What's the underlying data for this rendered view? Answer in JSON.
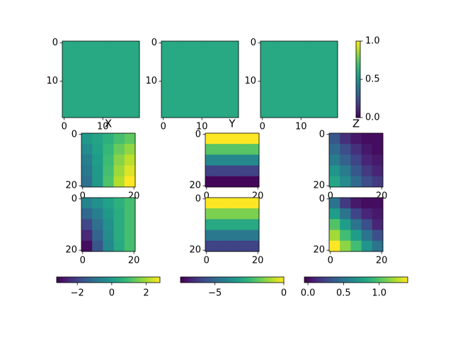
{
  "chart_data": [
    {
      "type": "heatmap",
      "colormap": "viridis",
      "clim": [
        0,
        1
      ],
      "xlim": [
        -0.5,
        19.5
      ],
      "ylim": [
        19.5,
        -0.5
      ],
      "xticks": [
        0,
        10
      ],
      "yticks": [
        0,
        10
      ],
      "z": [
        [
          0.6,
          0.6,
          0.6,
          0.6,
          0.6
        ],
        [
          0.6,
          0.6,
          0.6,
          0.6,
          0.6
        ],
        [
          0.6,
          0.6,
          0.6,
          0.6,
          0.6
        ],
        [
          0.6,
          0.6,
          0.6,
          0.6,
          0.6
        ],
        [
          0.6,
          0.6,
          0.6,
          0.6,
          0.6
        ]
      ]
    },
    {
      "type": "heatmap",
      "colormap": "viridis",
      "clim": [
        0,
        1
      ],
      "xlim": [
        -0.5,
        19.5
      ],
      "ylim": [
        19.5,
        -0.5
      ],
      "xticks": [
        0,
        10
      ],
      "yticks": [
        0,
        10
      ],
      "z": [
        [
          0.6,
          0.6,
          0.6,
          0.6,
          0.6
        ],
        [
          0.6,
          0.6,
          0.6,
          0.6,
          0.6
        ],
        [
          0.6,
          0.6,
          0.6,
          0.6,
          0.6
        ],
        [
          0.6,
          0.6,
          0.6,
          0.6,
          0.6
        ],
        [
          0.6,
          0.6,
          0.6,
          0.6,
          0.6
        ]
      ]
    },
    {
      "type": "heatmap",
      "colormap": "viridis",
      "clim": [
        0,
        1
      ],
      "xlim": [
        -0.5,
        19.5
      ],
      "ylim": [
        19.5,
        -0.5
      ],
      "xticks": [
        0,
        10
      ],
      "yticks": [
        0,
        10
      ],
      "z": [
        [
          0.6,
          0.6,
          0.6,
          0.6,
          0.6
        ],
        [
          0.6,
          0.6,
          0.6,
          0.6,
          0.6
        ],
        [
          0.6,
          0.6,
          0.6,
          0.6,
          0.6
        ],
        [
          0.6,
          0.6,
          0.6,
          0.6,
          0.6
        ],
        [
          0.6,
          0.6,
          0.6,
          0.6,
          0.6
        ]
      ]
    },
    {
      "type": "colorbar",
      "colormap": "viridis",
      "orientation": "vertical",
      "lim": [
        0,
        1
      ],
      "ticks": [
        {
          "value": 0,
          "label": "0.0"
        },
        0.5,
        {
          "value": 1,
          "label": "1.0"
        }
      ]
    },
    {
      "type": "heatmap",
      "title": "X",
      "colormap": "viridis",
      "clim": [
        -3.2,
        2.8
      ],
      "xlim": [
        -0.5,
        20.5
      ],
      "ylim": [
        20.5,
        -0.5
      ],
      "xticks": [
        0,
        20
      ],
      "yticks": [
        0,
        20
      ],
      "z": [
        [
          0,
          0.3,
          0.6,
          1.0,
          1.3
        ],
        [
          -0.3,
          0.2,
          0.8,
          1.4,
          1.8
        ],
        [
          -0.6,
          0.1,
          0.9,
          1.7,
          2.2
        ],
        [
          -0.8,
          0,
          1.0,
          1.9,
          2.5
        ],
        [
          -1,
          0,
          1.1,
          2.1,
          2.8
        ]
      ]
    },
    {
      "type": "heatmap",
      "title": "Y",
      "colormap": "viridis",
      "clim": [
        -7.5,
        0
      ],
      "xlim": [
        -0.5,
        20.5
      ],
      "ylim": [
        20.5,
        -0.5
      ],
      "xticks": [
        0,
        20
      ],
      "yticks": [
        0,
        20
      ],
      "z": [
        [
          0,
          0,
          0,
          0,
          0
        ],
        [
          -2,
          -2,
          -2,
          -2,
          -2
        ],
        [
          -4,
          -4,
          -4,
          -4,
          -4
        ],
        [
          -6,
          -6,
          -6,
          -6,
          -6
        ],
        [
          -7.4,
          -7.4,
          -7.4,
          -7.4,
          -7.4
        ]
      ]
    },
    {
      "type": "heatmap",
      "title": "Z",
      "colormap": "viridis",
      "clim": [
        -0.05,
        1.4
      ],
      "xlim": [
        -0.5,
        20.5
      ],
      "ylim": [
        20.5,
        -0.5
      ],
      "xticks": [
        0,
        20
      ],
      "yticks": [
        0,
        20
      ],
      "z": [
        [
          0.35,
          0.15,
          0.05,
          0,
          0
        ],
        [
          0.45,
          0.3,
          0.15,
          0.05,
          0
        ],
        [
          0.55,
          0.4,
          0.25,
          0.1,
          0.05
        ],
        [
          0.7,
          0.55,
          0.35,
          0.2,
          0.1
        ],
        [
          0.8,
          0.65,
          0.45,
          0.3,
          0.2
        ]
      ]
    },
    {
      "type": "heatmap",
      "colormap": "viridis",
      "clim": [
        -3.2,
        2.8
      ],
      "xlim": [
        -0.5,
        20.5
      ],
      "ylim": [
        20.5,
        -0.5
      ],
      "xticks": [
        0,
        20
      ],
      "yticks": [
        0,
        20
      ],
      "z": [
        [
          -0.5,
          -0.2,
          0.2,
          0.6,
          1.0
        ],
        [
          -1.2,
          -0.6,
          0,
          0.5,
          1.0
        ],
        [
          -1.9,
          -1.0,
          -0.2,
          0.5,
          1.0
        ],
        [
          -2.5,
          -1.3,
          -0.3,
          0.5,
          1.0
        ],
        [
          -3,
          -1.6,
          -0.4,
          0.4,
          1.0
        ]
      ]
    },
    {
      "type": "heatmap",
      "colormap": "viridis",
      "clim": [
        -7.5,
        0
      ],
      "xlim": [
        -0.5,
        20.5
      ],
      "ylim": [
        20.5,
        -0.5
      ],
      "xticks": [
        0,
        20
      ],
      "yticks": [
        0,
        20
      ],
      "z": [
        [
          0,
          0,
          0,
          0,
          0
        ],
        [
          -1.5,
          -1.5,
          -1.5,
          -1.5,
          -1.5
        ],
        [
          -3,
          -3,
          -3,
          -3,
          -3
        ],
        [
          -4.5,
          -4.5,
          -4.5,
          -4.5,
          -4.5
        ],
        [
          -6,
          -6,
          -6,
          -6,
          -6
        ]
      ]
    },
    {
      "type": "heatmap",
      "colormap": "viridis",
      "clim": [
        -0.05,
        1.4
      ],
      "xlim": [
        -0.5,
        20.5
      ],
      "ylim": [
        20.5,
        -0.5
      ],
      "xticks": [
        0,
        20
      ],
      "yticks": [
        0,
        20
      ],
      "z": [
        [
          0.5,
          0.2,
          0.05,
          0,
          0
        ],
        [
          0.75,
          0.5,
          0.25,
          0.1,
          0.05
        ],
        [
          1.0,
          0.75,
          0.5,
          0.3,
          0.1
        ],
        [
          1.2,
          0.95,
          0.75,
          0.5,
          0.3
        ],
        [
          1.4,
          1.15,
          0.95,
          0.7,
          0.5
        ]
      ]
    },
    {
      "type": "colorbar",
      "colormap": "viridis",
      "orientation": "horizontal",
      "lim": [
        -3.2,
        2.8
      ],
      "ticks": [
        {
          "value": -2,
          "label": "−2"
        },
        0,
        2
      ]
    },
    {
      "type": "colorbar",
      "colormap": "viridis",
      "orientation": "horizontal",
      "lim": [
        -7.5,
        0
      ],
      "ticks": [
        {
          "value": -5,
          "label": "−5"
        },
        0
      ]
    },
    {
      "type": "colorbar",
      "colormap": "viridis",
      "orientation": "horizontal",
      "lim": [
        -0.05,
        1.4
      ],
      "ticks": [
        {
          "value": 0,
          "label": "0.0"
        },
        0.5,
        {
          "value": 1,
          "label": "1.0"
        }
      ]
    }
  ]
}
